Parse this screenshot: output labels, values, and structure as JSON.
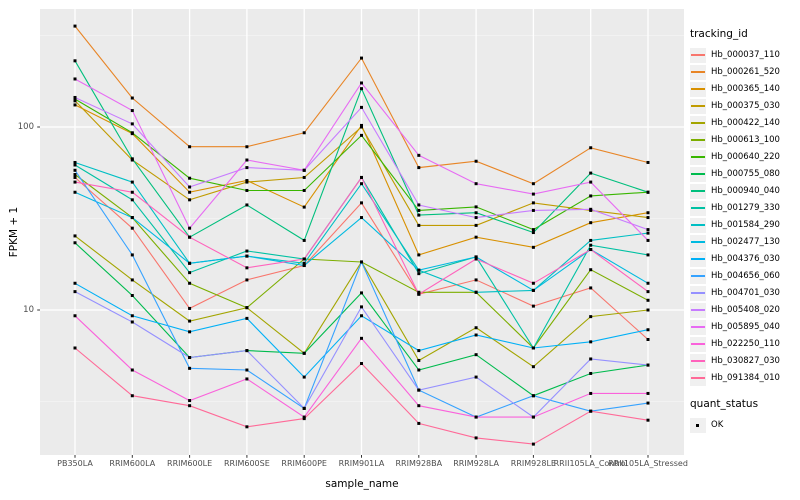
{
  "axes": {
    "x_label": "sample_name",
    "y_label": "FPKM + 1",
    "y_ticks": [
      {
        "label": "100",
        "value": 100
      },
      {
        "label": "10",
        "value": 10
      }
    ]
  },
  "legend": {
    "tracking_title": "tracking_id",
    "quant_title": "quant_status",
    "quant_items": [
      {
        "label": "OK",
        "marker": "black-square"
      }
    ]
  },
  "style": {
    "panel_bg": "#EBEBEB",
    "grid_major": "#FFFFFF",
    "grid_minor": "#F5F5F5",
    "tick_text_color": "#4D4D4D",
    "marker_color": "#000000",
    "legend_key_bg": "#F0F0F0"
  },
  "chart_data": {
    "type": "line",
    "title": "",
    "xlabel": "sample_name",
    "ylabel": "FPKM + 1",
    "y_scale": "log10",
    "ylim": [
      1.4,
      440
    ],
    "y_gridlines_major": [
      10,
      100
    ],
    "y_gridlines_minor": [
      3.162,
      31.62,
      316.2
    ],
    "grid": true,
    "legend_position": "right",
    "marker": "black-square",
    "categories": [
      "PB350LA",
      "RRIM600LA",
      "RRIM600LE",
      "RRIM600SE",
      "RRIM600PE",
      "RRIM901LA",
      "RRIM928BA",
      "RRIM928LA",
      "RRIM928LE",
      "RRII105LA_Control",
      "RRII105LA_Stressed"
    ],
    "series": [
      {
        "name": "Hb_000037_110",
        "color": "#F8766D",
        "values": [
          53,
          28,
          10.2,
          14.6,
          17.5,
          38.5,
          12.2,
          14.6,
          10.5,
          13.2,
          6.9
        ]
      },
      {
        "name": "Hb_000261_520",
        "color": "#E88526",
        "values": [
          356,
          144,
          78,
          78,
          93,
          238,
          60,
          65,
          49,
          77,
          64
        ]
      },
      {
        "name": "Hb_000365_140",
        "color": "#D89000",
        "values": [
          132,
          92,
          44,
          51,
          36.5,
          102,
          20,
          25,
          22,
          30,
          34
        ]
      },
      {
        "name": "Hb_000375_030",
        "color": "#C09B00",
        "values": [
          139,
          66,
          40,
          50,
          53,
          100,
          29,
          29,
          38.5,
          35,
          32
        ]
      },
      {
        "name": "Hb_000422_140",
        "color": "#A3A500",
        "values": [
          25.4,
          14.6,
          8.7,
          10.3,
          5.8,
          18.3,
          5.3,
          8.0,
          4.9,
          9.2,
          10
        ]
      },
      {
        "name": "Hb_000613_100",
        "color": "#7CAE00",
        "values": [
          55,
          32,
          14,
          10.3,
          19,
          18.3,
          12.5,
          12.5,
          6.2,
          16.6,
          11.3
        ]
      },
      {
        "name": "Hb_000640_220",
        "color": "#39B600",
        "values": [
          142,
          93,
          52.5,
          45,
          45,
          90,
          35,
          36.6,
          27.5,
          42,
          44
        ]
      },
      {
        "name": "Hb_000755_080",
        "color": "#00BB4E",
        "values": [
          23.3,
          12,
          5.5,
          6.0,
          5.8,
          12.4,
          4.7,
          5.7,
          3.4,
          4.5,
          5.0
        ]
      },
      {
        "name": "Hb_000940_040",
        "color": "#00BF7D",
        "values": [
          230,
          67,
          25,
          37.5,
          24,
          162,
          33,
          34,
          26.5,
          56,
          44
        ]
      },
      {
        "name": "Hb_001279_330",
        "color": "#00C1A3",
        "values": [
          62,
          40,
          16,
          21,
          19,
          53,
          15.8,
          19.5,
          6.2,
          22.6,
          20
        ]
      },
      {
        "name": "Hb_001584_290",
        "color": "#00BFC4",
        "values": [
          64,
          50,
          18,
          19.7,
          18,
          49,
          16.5,
          12.5,
          12.8,
          24,
          26.3
        ]
      },
      {
        "name": "Hb_002477_130",
        "color": "#00BAE0",
        "values": [
          44,
          32,
          18,
          19.7,
          17.5,
          32,
          16.5,
          19.5,
          12.8,
          21.4,
          14
        ]
      },
      {
        "name": "Hb_004376_030",
        "color": "#00B0F6",
        "values": [
          14,
          9.3,
          7.6,
          9.0,
          4.3,
          9.3,
          6.0,
          7.3,
          6.2,
          6.7,
          7.8
        ]
      },
      {
        "name": "Hb_004656_060",
        "color": "#35A2FF",
        "values": [
          58,
          20,
          4.8,
          4.7,
          2.9,
          18.3,
          3.65,
          2.6,
          3.4,
          2.8,
          3.1
        ]
      },
      {
        "name": "Hb_004701_030",
        "color": "#9590FF",
        "values": [
          12.6,
          8.6,
          5.5,
          6.0,
          2.9,
          10.4,
          3.65,
          4.3,
          2.6,
          5.4,
          5.0
        ]
      },
      {
        "name": "Hb_005408_020",
        "color": "#C77CFF",
        "values": [
          145,
          104,
          47,
          60,
          58,
          128,
          37.5,
          32,
          35,
          35.5,
          27.5
        ]
      },
      {
        "name": "Hb_005895_040",
        "color": "#E76BF3",
        "values": [
          183,
          123,
          28,
          66,
          58,
          174,
          70,
          49,
          43,
          50,
          24
        ]
      },
      {
        "name": "Hb_022250_110",
        "color": "#FA62DB",
        "values": [
          9.3,
          4.7,
          3.2,
          4.2,
          2.6,
          7.0,
          3.0,
          2.6,
          2.6,
          3.5,
          3.5
        ]
      },
      {
        "name": "Hb_030827_030",
        "color": "#FF62BC",
        "values": [
          50,
          44,
          25,
          17,
          19,
          53,
          12.2,
          19,
          14,
          21.4,
          12.6
        ]
      },
      {
        "name": "Hb_091384_010",
        "color": "#FF6A98",
        "values": [
          6.2,
          3.4,
          3.0,
          2.3,
          2.55,
          5.1,
          2.4,
          2.0,
          1.85,
          2.8,
          2.5
        ]
      }
    ]
  }
}
